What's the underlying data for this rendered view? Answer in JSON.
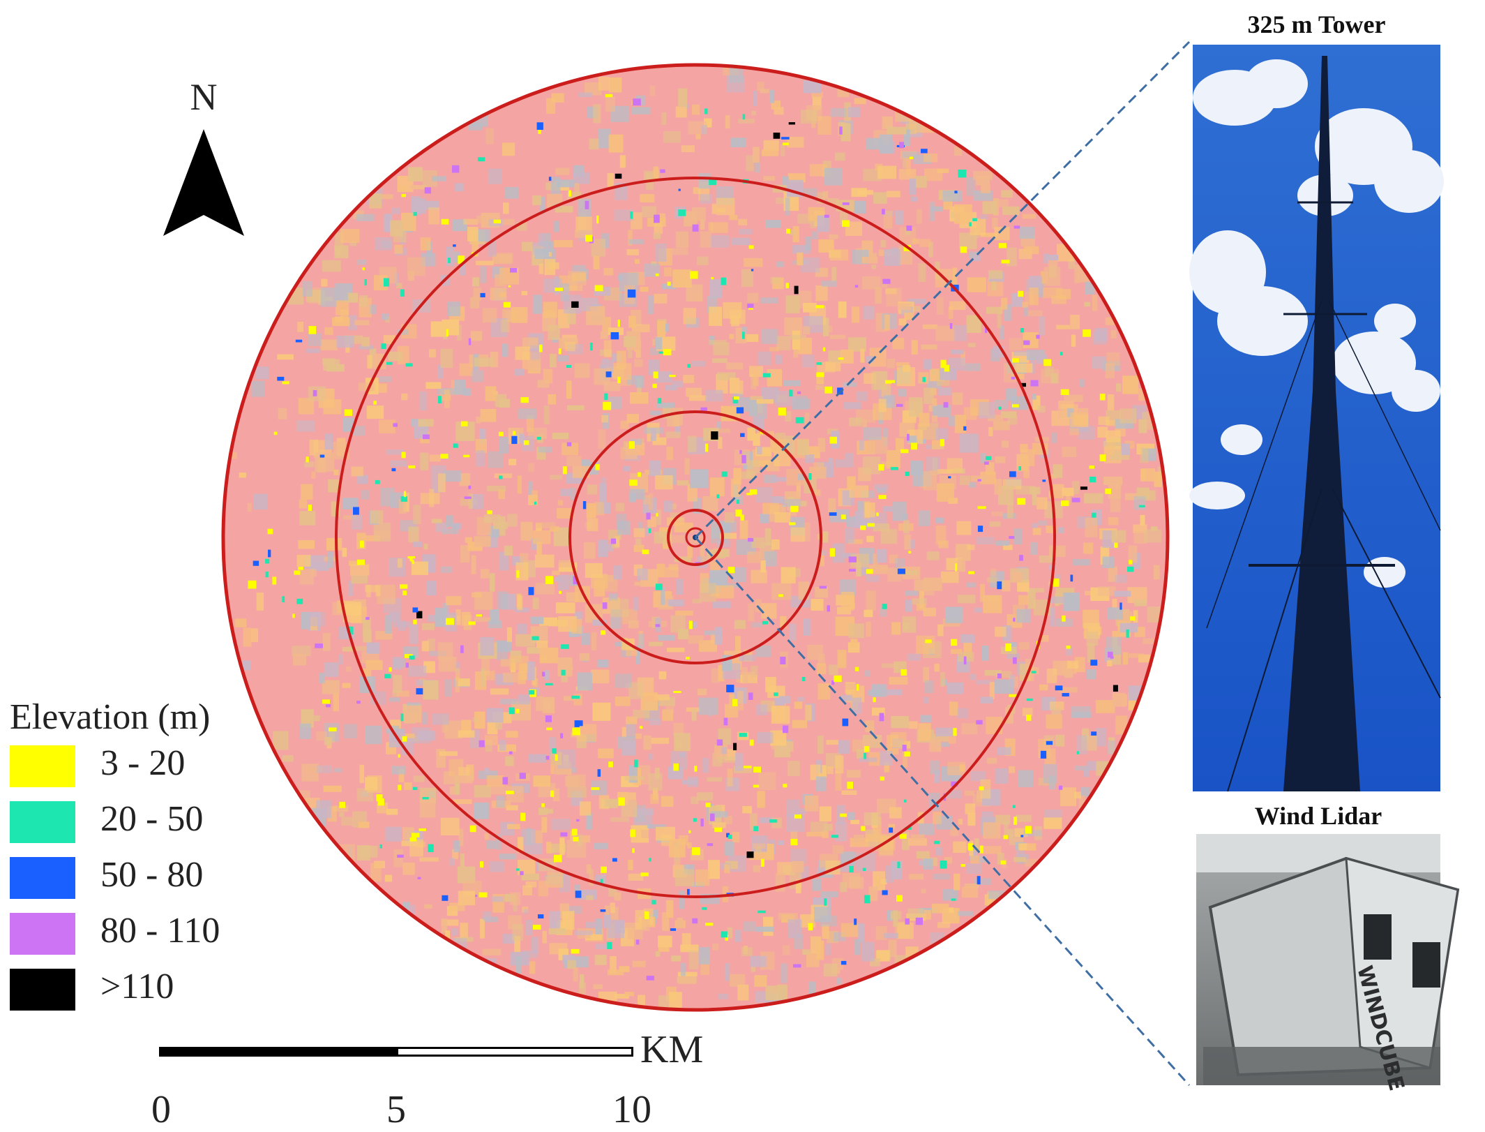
{
  "map": {
    "north_label": "N",
    "ring_color": "#cc1d1d",
    "base_color": "#f4a5a3"
  },
  "legend": {
    "title": "Elevation (m)",
    "items": [
      {
        "label": "3 - 20",
        "color": "#ffff00"
      },
      {
        "label": "20 - 50",
        "color": "#1de6b0"
      },
      {
        "label": "50 - 80",
        "color": "#1a5fff"
      },
      {
        "label": "80 - 110",
        "color": "#cc74f4"
      },
      {
        "label": ">110",
        "color": "#000000"
      }
    ]
  },
  "scalebar": {
    "ticks": [
      "0",
      "5",
      "10"
    ],
    "unit": "KM"
  },
  "photos": {
    "tower_title": "325 m Tower",
    "lidar_title": "Wind Lidar",
    "lidar_device_text": "WINDCUBE"
  }
}
